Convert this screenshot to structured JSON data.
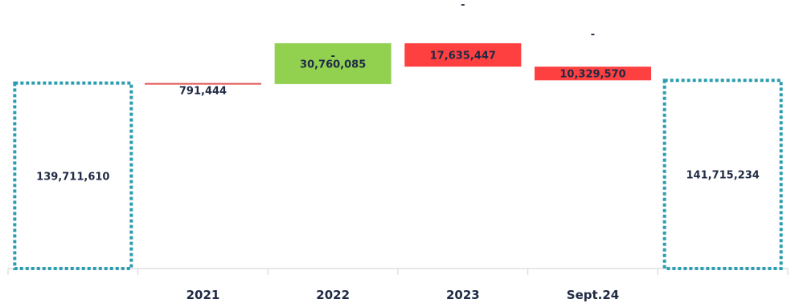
{
  "chart_data": {
    "type": "waterfall",
    "title": "",
    "xlabel": "",
    "ylabel": "",
    "categories": [
      "",
      "2021",
      "2022",
      "2023",
      "Sept.24",
      ""
    ],
    "bars": [
      {
        "kind": "total",
        "value": 139711610,
        "label": "139,711,610",
        "color": "#2a9db0"
      },
      {
        "kind": "decrease",
        "value": -791444,
        "label": "791,444",
        "color": "#e05050"
      },
      {
        "kind": "increase",
        "value": 30760085,
        "label": "30,760,085",
        "color": "#92d050"
      },
      {
        "kind": "decrease",
        "value": -17635447,
        "label": "17,635,447",
        "color": "#ff4040"
      },
      {
        "kind": "decrease",
        "value": -10329570,
        "label": "10,329,570",
        "color": "#ff4040"
      },
      {
        "kind": "total",
        "value": 141715234,
        "label": "141,715,234",
        "color": "#2a9db0"
      }
    ],
    "dash_marks": [
      "-",
      "-",
      "-"
    ],
    "colors": {
      "total_outline": "#2a9db0",
      "increase": "#92d050",
      "decrease": "#ff4040",
      "axis": "#d0d0d0",
      "text": "#1f2a44"
    }
  }
}
